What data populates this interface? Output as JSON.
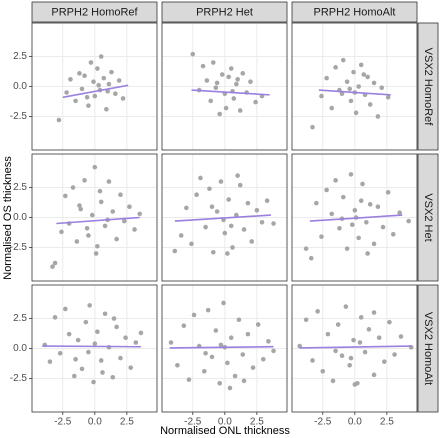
{
  "chart_data": {
    "type": "scatter",
    "xlabel": "Normalised ONL thickness",
    "ylabel": "Normalised OS thickness",
    "col_labels": [
      "PRPH2 HomoRef",
      "PRPH2 Het",
      "PRPH2 HomoAlt"
    ],
    "row_labels": [
      "VSX2 HomoRef",
      "VSX2 Het",
      "VSX2 HomoAlt"
    ],
    "point_color": "#a6a6a6",
    "fit_color": "#9b80e0",
    "grid": true,
    "xlim": [
      -4.9,
      4.85
    ],
    "ylim": [
      -5.3,
      5.3
    ],
    "xticks": [
      {
        "value": -2.5,
        "label": "-2.5"
      },
      {
        "value": 0,
        "label": "0.0"
      },
      {
        "value": 2.5,
        "label": "2.5"
      }
    ],
    "yticks": [
      {
        "value": -2.5,
        "label": "-2.5"
      },
      {
        "value": 0,
        "label": "0.0"
      },
      {
        "value": 2.5,
        "label": "2.5"
      }
    ],
    "panels": [
      [
        {
          "x": [
            -2.8,
            -2.2,
            -1.9,
            -1.5,
            -1.2,
            -1.0,
            -0.8,
            -0.5,
            -0.3,
            -0.1,
            0.0,
            0.2,
            0.4,
            0.5,
            0.7,
            0.9,
            1.1,
            1.3,
            1.6,
            1.9,
            2.2,
            -0.6,
            0.3,
            1.0
          ],
          "y": [
            -2.8,
            -0.5,
            0.6,
            -1.2,
            1.1,
            -0.2,
            0.9,
            -1.6,
            2.0,
            0.4,
            -0.8,
            1.5,
            -0.3,
            2.5,
            0.7,
            -1.9,
            0.2,
            1.2,
            -0.6,
            0.5,
            -1.0,
            -0.9,
            0.1,
            -0.4
          ],
          "fit_x": [
            -2.5,
            2.6
          ],
          "fit_y": [
            -0.9,
            0.1
          ]
        },
        {
          "x": [
            -2.5,
            -2.0,
            -1.7,
            -1.4,
            -1.1,
            -0.9,
            -0.6,
            -0.4,
            -0.2,
            0.0,
            0.1,
            0.3,
            0.5,
            0.7,
            0.9,
            1.2,
            1.4,
            1.7,
            2.0,
            2.4,
            2.9,
            -0.7,
            0.6,
            1.0
          ],
          "y": [
            2.7,
            -0.3,
            1.7,
            0.5,
            -1.2,
            2.0,
            0.3,
            -2.3,
            1.0,
            -0.6,
            -1.8,
            0.8,
            1.5,
            -1.0,
            0.2,
            -2.0,
            1.1,
            -0.5,
            0.4,
            -1.3,
            -0.8,
            -0.1,
            -0.4,
            0.6
          ],
          "fit_x": [
            -2.6,
            3.5
          ],
          "fit_y": [
            -0.3,
            -0.7
          ]
        },
        {
          "x": [
            -3.3,
            -2.6,
            -2.2,
            -1.8,
            -1.5,
            -1.2,
            -0.9,
            -0.6,
            -0.3,
            -0.1,
            0.1,
            0.3,
            0.5,
            0.8,
            1.0,
            1.2,
            1.5,
            1.8,
            2.1,
            2.6,
            -1.0,
            0.0,
            0.7,
            -0.4
          ],
          "y": [
            -3.4,
            -0.8,
            0.7,
            -1.8,
            1.6,
            -0.3,
            2.2,
            0.4,
            -1.2,
            1.2,
            -2.2,
            0.0,
            1.8,
            -0.7,
            0.8,
            -1.5,
            0.3,
            -2.5,
            -0.1,
            -0.9,
            -0.6,
            -0.5,
            1.0,
            -0.2
          ],
          "fit_x": [
            -2.8,
            2.8
          ],
          "fit_y": [
            -0.3,
            -0.7
          ]
        }
      ],
      [
        {
          "x": [
            -3.3,
            -3.1,
            -2.6,
            -2.3,
            -2.0,
            -1.7,
            -1.4,
            -1.1,
            -0.8,
            -0.5,
            -0.2,
            0.0,
            0.2,
            0.5,
            0.8,
            1.1,
            1.4,
            1.7,
            2.0,
            2.3,
            2.7,
            3.1,
            3.5,
            -0.6,
            0.4,
            1.0,
            -1.2,
            0.1
          ],
          "y": [
            -4.1,
            -3.8,
            -1.2,
            1.8,
            -0.5,
            2.5,
            -2.0,
            0.7,
            3.1,
            -1.5,
            0.2,
            4.2,
            -2.4,
            1.3,
            -0.7,
            3.0,
            0.5,
            -1.8,
            1.9,
            -0.3,
            0.9,
            -1.0,
            0.3,
            -0.9,
            2.2,
            -0.2,
            1.0,
            -3.0
          ],
          "fit_x": [
            -3.0,
            3.5
          ],
          "fit_y": [
            -0.5,
            0.0
          ]
        },
        {
          "x": [
            -3.9,
            -3.4,
            -3.0,
            -2.6,
            -2.2,
            -1.9,
            -1.5,
            -1.2,
            -0.9,
            -0.6,
            -0.3,
            0.0,
            0.3,
            0.6,
            0.9,
            1.2,
            1.5,
            1.8,
            2.1,
            2.5,
            2.9,
            3.3,
            3.8,
            -0.1,
            0.5,
            -1.0,
            1.0,
            0.2
          ],
          "y": [
            -2.8,
            -1.5,
            0.8,
            -2.2,
            1.9,
            3.3,
            -0.8,
            2.4,
            -2.9,
            0.5,
            3.0,
            -1.3,
            1.5,
            -2.5,
            0.2,
            2.7,
            -1.0,
            1.2,
            -2.0,
            0.6,
            -0.4,
            1.4,
            -0.5,
            -0.2,
            -0.7,
            0.9,
            3.5,
            -3.0
          ],
          "fit_x": [
            -3.9,
            3.6
          ],
          "fit_y": [
            -0.3,
            0.2
          ]
        },
        {
          "x": [
            -3.8,
            -3.4,
            -3.0,
            -2.6,
            -2.2,
            -1.8,
            -1.5,
            -1.2,
            -0.9,
            -0.6,
            -0.3,
            0.0,
            0.3,
            0.6,
            0.9,
            1.2,
            1.5,
            1.8,
            2.2,
            2.6,
            3.0,
            3.5,
            4.2,
            -0.2,
            0.5,
            -1.0,
            1.0,
            0.1
          ],
          "y": [
            -2.6,
            -3.4,
            1.2,
            -1.6,
            2.3,
            0.3,
            3.1,
            -0.9,
            1.7,
            -2.6,
            3.6,
            0.6,
            -1.7,
            2.8,
            -0.4,
            1.1,
            -2.2,
            0.9,
            -0.8,
            2.1,
            -1.4,
            0.4,
            -0.3,
            -0.6,
            1.4,
            -0.1,
            -3.0,
            0.0
          ],
          "fit_x": [
            -3.5,
            3.7
          ],
          "fit_y": [
            -0.3,
            0.2
          ]
        }
      ],
      [
        {
          "x": [
            -3.9,
            -3.5,
            -3.1,
            -2.7,
            -2.3,
            -2.0,
            -1.6,
            -1.3,
            -1.0,
            -0.7,
            -0.4,
            -0.1,
            0.2,
            0.5,
            0.8,
            1.1,
            1.4,
            1.7,
            2.0,
            2.4,
            2.8,
            3.2,
            3.6,
            -0.5,
            0.6,
            -1.5,
            1.5,
            0.0
          ],
          "y": [
            0.3,
            -1.1,
            2.6,
            -0.4,
            3.3,
            1.2,
            -2.3,
            0.7,
            -1.7,
            2.2,
            3.6,
            -2.8,
            1.4,
            -1.0,
            2.9,
            0.1,
            -2.4,
            1.8,
            -0.8,
            0.9,
            -1.6,
            0.5,
            1.3,
            -0.3,
            -2.0,
            -0.9,
            2.5,
            0.4
          ],
          "fit_x": [
            -4.1,
            3.6
          ],
          "fit_y": [
            0.2,
            0.15
          ]
        },
        {
          "x": [
            -4.2,
            -3.7,
            -3.2,
            -2.8,
            -2.4,
            -2.0,
            -1.6,
            -1.3,
            -1.0,
            -0.7,
            -0.4,
            -0.1,
            0.2,
            0.5,
            0.8,
            1.1,
            1.4,
            1.8,
            2.2,
            2.6,
            3.0,
            3.4,
            3.8,
            -0.3,
            0.4,
            -1.5,
            1.5,
            0.0
          ],
          "y": [
            0.5,
            -1.4,
            1.9,
            -2.6,
            2.8,
            0.2,
            -1.9,
            3.2,
            -0.7,
            1.5,
            -2.9,
            3.8,
            -1.2,
            0.9,
            -2.3,
            2.4,
            -0.5,
            1.2,
            -1.6,
            2.0,
            -0.9,
            0.6,
            -0.2,
            0.3,
            -3.3,
            -0.4,
            -2.7,
            0.1
          ],
          "fit_x": [
            -4.3,
            3.8
          ],
          "fit_y": [
            0.05,
            0.15
          ]
        },
        {
          "x": [
            -4.3,
            -3.8,
            -3.3,
            -2.9,
            -2.5,
            -2.1,
            -1.7,
            -1.3,
            -1.0,
            -0.7,
            -0.4,
            -0.1,
            0.2,
            0.5,
            0.8,
            1.1,
            1.5,
            1.9,
            2.3,
            2.7,
            3.1,
            3.6,
            4.4,
            -0.3,
            0.4,
            -1.5,
            1.5,
            0.0
          ],
          "y": [
            0.2,
            2.4,
            -1.0,
            3.1,
            -1.9,
            1.2,
            -2.7,
            2.0,
            -0.6,
            3.5,
            -1.4,
            0.7,
            -2.9,
            2.6,
            -0.3,
            1.6,
            -2.2,
            0.9,
            -1.1,
            2.2,
            -0.5,
            1.0,
            0.1,
            -0.8,
            0.5,
            -0.2,
            3.0,
            -3.0
          ],
          "fit_x": [
            -4.3,
            4.4
          ],
          "fit_y": [
            0.05,
            0.2
          ]
        }
      ]
    ]
  }
}
